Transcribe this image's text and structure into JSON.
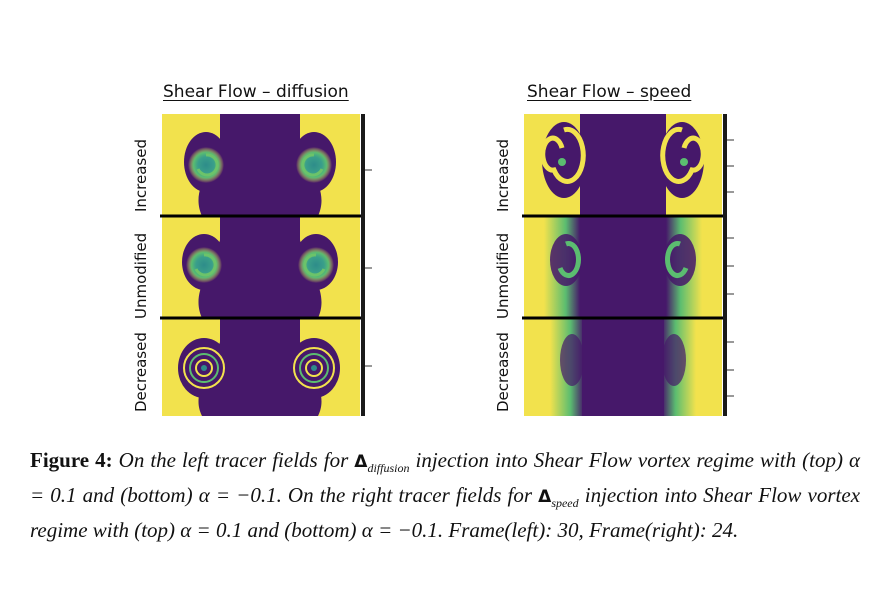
{
  "panels": {
    "left_title": "Shear Flow – diffusion",
    "right_title": "Shear Flow – speed"
  },
  "row_labels": [
    "Increased",
    "Unmodified",
    "Decreased"
  ],
  "colors": {
    "yellow": "#f2e24d",
    "purple": "#46186a",
    "teal": "#2a8a8c",
    "green": "#5dc46a"
  },
  "caption": {
    "figure_label": "Figure 4:",
    "part1": "On the left tracer fields for",
    "delta1": "Δ",
    "sub1": "diffusion",
    "part2": "injection into Shear Flow vortex regime with (top) α = 0.1 and (bottom) α = −0.1. On the right tracer fields for",
    "delta2": "Δ",
    "sub2": "speed",
    "part3": "injection into Shear Flow vortex regime with (top) α = 0.1 and (bottom) α = −0.1. Frame(left): 30, Frame(right): 24."
  }
}
